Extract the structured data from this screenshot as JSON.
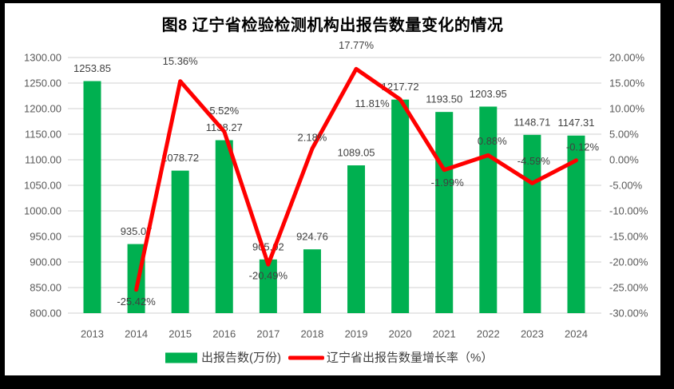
{
  "title": "图8  辽宁省检验检测机构出报告数量变化的情况",
  "chart_data": {
    "type": "bar",
    "subtype": "combo_bar_line",
    "categories": [
      "2013",
      "2014",
      "2015",
      "2016",
      "2017",
      "2018",
      "2019",
      "2020",
      "2021",
      "2022",
      "2023",
      "2024"
    ],
    "series": [
      {
        "name": "出报告数(万份)",
        "type": "bar",
        "axis": "left",
        "color": "#00B050",
        "values": [
          1253.85,
          935.07,
          1078.72,
          1138.27,
          905.02,
          924.76,
          1089.05,
          1217.72,
          1193.5,
          1203.95,
          1148.71,
          1147.31
        ],
        "labels": [
          "1253.85",
          "935.07",
          "1078.72",
          "1138.27",
          "905.02",
          "924.76",
          "1089.05",
          "1217.72",
          "1193.50",
          "1203.95",
          "1148.71",
          "1147.31"
        ]
      },
      {
        "name": "辽宁省出报告数量增长率（%）",
        "type": "line",
        "axis": "right",
        "color": "#FF0000",
        "values": [
          null,
          -25.42,
          15.36,
          5.52,
          -20.49,
          2.18,
          17.77,
          11.81,
          -1.99,
          0.88,
          -4.59,
          -0.12
        ],
        "labels": [
          null,
          "-25.42%",
          "15.36%",
          "5.52%",
          "-20.49%",
          "2.18%",
          "17.77%",
          "11.81%",
          "-1.99%",
          "0.88%",
          "-4.59%",
          "-0.12%"
        ]
      }
    ],
    "left_axis": {
      "min": 800,
      "max": 1300,
      "step": 50,
      "tick_labels": [
        "1300.00",
        "1250.00",
        "1200.00",
        "1150.00",
        "1100.00",
        "1050.00",
        "1000.00",
        "950.00",
        "900.00",
        "850.00",
        "800.00"
      ]
    },
    "right_axis": {
      "min": -30,
      "max": 20,
      "step": 5,
      "tick_labels": [
        "20.00%",
        "15.00%",
        "10.00%",
        "5.00%",
        "0.00%",
        "-5.00%",
        "-10.00%",
        "-15.00%",
        "-20.00%",
        "-25.00%",
        "-30.00%"
      ]
    },
    "gridlines": "horizontal",
    "legend_position": "bottom",
    "line_label_offsets": [
      null,
      [
        0,
        15
      ],
      [
        0,
        -25
      ],
      [
        0,
        -26
      ],
      [
        0,
        14
      ],
      [
        0,
        -14
      ],
      [
        0,
        -30
      ],
      [
        -35,
        5
      ],
      [
        4,
        16
      ],
      [
        5,
        -18
      ],
      [
        2,
        -28
      ],
      [
        8,
        -17
      ]
    ]
  },
  "legend": {
    "items": [
      {
        "label": "出报告数(万份)",
        "swatch": "bar",
        "color": "#00B050"
      },
      {
        "label": "辽宁省出报告数量增长率（%）",
        "swatch": "line",
        "color": "#FF0000"
      }
    ]
  },
  "colors": {
    "background": "#FFFFFF",
    "frame": "#000000",
    "grid": "#D9D9D9",
    "axis_text": "#595959",
    "data_label": "#404040",
    "legend_text": "#404040",
    "title_text": "#000000"
  }
}
